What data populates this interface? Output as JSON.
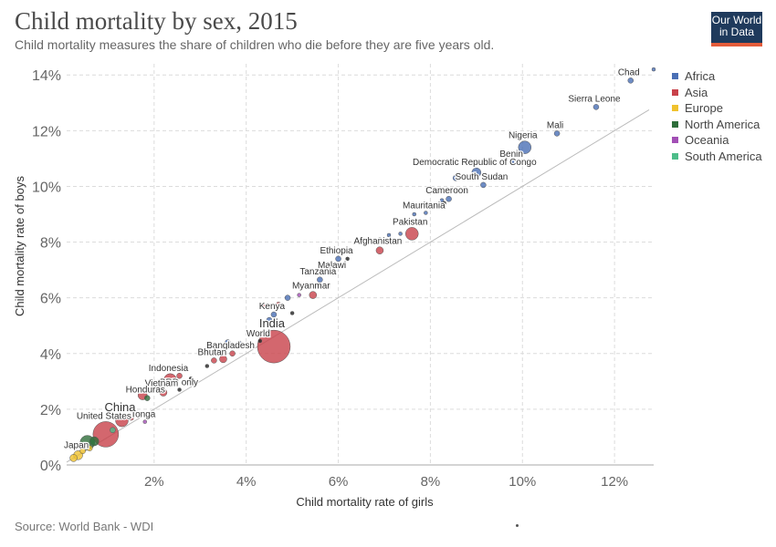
{
  "header": {
    "title": "Child mortality by sex, 2015",
    "subtitle": "Child mortality measures the share of children who die before they are five years old."
  },
  "logo": {
    "line1": "Our World",
    "line2": "in Data"
  },
  "footer": {
    "source": "Source: World Bank - WDI"
  },
  "colors": {
    "Africa": "#4a6fb5",
    "Asia": "#c8414a",
    "Europe": "#f0c22e",
    "North America": "#2e6e3a",
    "Oceania": "#a24fb5",
    "South America": "#4dbd89",
    "aggregate": "#222222"
  },
  "legend": [
    "Africa",
    "Asia",
    "Europe",
    "North America",
    "Oceania",
    "South America"
  ],
  "chart_data": {
    "type": "scatter",
    "xlabel": "Child mortality rate of girls",
    "ylabel": "Child mortality rate of boys",
    "xlim": [
      0.1,
      12.85
    ],
    "ylim": [
      0,
      14.4
    ],
    "x_ticks": [
      "2%",
      "4%",
      "6%",
      "8%",
      "10%",
      "12%"
    ],
    "y_ticks": [
      "0%",
      "2%",
      "4%",
      "6%",
      "8%",
      "10%",
      "12%",
      "14%"
    ],
    "grid": true,
    "reference_line": "y = x",
    "legend_position": "right",
    "points": [
      {
        "label": "Chad",
        "x": 12.35,
        "y": 13.8,
        "r": 3,
        "region": "Africa"
      },
      {
        "label": "",
        "x": 12.85,
        "y": 14.2,
        "r": 2,
        "region": "Africa"
      },
      {
        "label": "Sierra Leone",
        "x": 11.6,
        "y": 12.85,
        "r": 3,
        "region": "Africa"
      },
      {
        "label": "Mali",
        "x": 10.75,
        "y": 11.9,
        "r": 3,
        "region": "Africa"
      },
      {
        "label": "Nigeria",
        "x": 10.05,
        "y": 11.4,
        "r": 7,
        "region": "Africa"
      },
      {
        "label": "Benin",
        "x": 9.8,
        "y": 10.9,
        "r": 2,
        "region": "Africa"
      },
      {
        "label": "Democratic Republic of Congo",
        "x": 9.0,
        "y": 10.5,
        "r": 5,
        "region": "Africa"
      },
      {
        "label": "South Sudan",
        "x": 9.15,
        "y": 10.05,
        "r": 3,
        "region": "Africa"
      },
      {
        "label": "",
        "x": 8.55,
        "y": 10.3,
        "r": 3,
        "region": "Africa"
      },
      {
        "label": "Cameroon",
        "x": 8.4,
        "y": 9.55,
        "r": 3,
        "region": "Africa"
      },
      {
        "label": "",
        "x": 8.25,
        "y": 9.5,
        "r": 2,
        "region": "Africa"
      },
      {
        "label": "Mauritania",
        "x": 7.9,
        "y": 9.05,
        "r": 2,
        "region": "Africa"
      },
      {
        "label": "",
        "x": 7.65,
        "y": 9.0,
        "r": 2,
        "region": "Africa"
      },
      {
        "label": "Pakistan",
        "x": 7.6,
        "y": 8.3,
        "r": 7,
        "region": "Asia"
      },
      {
        "label": "Afghanistan",
        "x": 6.9,
        "y": 7.7,
        "r": 4,
        "region": "Asia"
      },
      {
        "label": "",
        "x": 7.35,
        "y": 8.3,
        "r": 2,
        "region": "Africa"
      },
      {
        "label": "",
        "x": 7.1,
        "y": 8.25,
        "r": 2,
        "region": "Africa"
      },
      {
        "label": "",
        "x": 6.9,
        "y": 8.1,
        "r": 2,
        "region": "North America"
      },
      {
        "label": "Ethiopia",
        "x": 6.0,
        "y": 7.4,
        "r": 3,
        "region": "Africa"
      },
      {
        "label": "",
        "x": 5.75,
        "y": 7.1,
        "r": 5,
        "region": "Africa"
      },
      {
        "label": "Malawi",
        "x": 5.9,
        "y": 6.9,
        "r": 2,
        "region": "Africa"
      },
      {
        "label": "Tanzania",
        "x": 5.6,
        "y": 6.65,
        "r": 3,
        "region": "Africa"
      },
      {
        "label": "Myanmar",
        "x": 5.45,
        "y": 6.1,
        "r": 4,
        "region": "Asia"
      },
      {
        "label": "",
        "x": 5.15,
        "y": 6.1,
        "r": 2,
        "region": "Oceania"
      },
      {
        "label": "",
        "x": 4.9,
        "y": 6.0,
        "r": 3,
        "region": "Africa"
      },
      {
        "label": "Kenya",
        "x": 4.6,
        "y": 5.4,
        "r": 3,
        "region": "Africa"
      },
      {
        "label": "",
        "x": 4.5,
        "y": 5.2,
        "r": 3,
        "region": "Africa"
      },
      {
        "label": "",
        "x": 4.4,
        "y": 5.7,
        "r": 2,
        "region": "Asia"
      },
      {
        "label": "",
        "x": 4.7,
        "y": 5.75,
        "r": 3,
        "region": "Asia"
      },
      {
        "label": "",
        "x": 5.0,
        "y": 5.45,
        "r": 2,
        "region": "aggregate"
      },
      {
        "label": "India",
        "x": 4.6,
        "y": 4.25,
        "r": 18,
        "region": "Asia"
      },
      {
        "label": "World",
        "x": 4.3,
        "y": 4.45,
        "r": 2,
        "region": "aggregate"
      },
      {
        "label": "",
        "x": 3.85,
        "y": 4.4,
        "r": 2,
        "region": "Africa"
      },
      {
        "label": "",
        "x": 3.6,
        "y": 4.4,
        "r": 3,
        "region": "Africa"
      },
      {
        "label": "Bangladesh",
        "x": 3.7,
        "y": 4.0,
        "r": 3,
        "region": "Asia"
      },
      {
        "label": "Bhutan",
        "x": 3.3,
        "y": 3.75,
        "r": 3,
        "region": "Asia"
      },
      {
        "label": "",
        "x": 3.5,
        "y": 3.8,
        "r": 4,
        "region": "Asia"
      },
      {
        "label": "Indonesia",
        "x": 2.35,
        "y": 3.05,
        "r": 7,
        "region": "Asia"
      },
      {
        "label": "",
        "x": 2.55,
        "y": 3.2,
        "r": 3,
        "region": "Asia"
      },
      {
        "label": "IBRD only",
        "x": 2.55,
        "y": 2.7,
        "r": 2,
        "region": "aggregate"
      },
      {
        "label": "Vietnam",
        "x": 2.2,
        "y": 2.6,
        "r": 4,
        "region": "Asia"
      },
      {
        "label": "Honduras",
        "x": 1.85,
        "y": 2.4,
        "r": 3,
        "region": "North America"
      },
      {
        "label": "",
        "x": 1.75,
        "y": 2.5,
        "r": 5,
        "region": "Asia"
      },
      {
        "label": "Tonga",
        "x": 1.8,
        "y": 1.55,
        "r": 2,
        "region": "Oceania"
      },
      {
        "label": "China",
        "x": 1.3,
        "y": 1.6,
        "r": 7,
        "region": "Asia"
      },
      {
        "label": "",
        "x": 1.5,
        "y": 1.7,
        "r": 3,
        "region": "Asia"
      },
      {
        "label": "United States",
        "x": 0.95,
        "y": 1.1,
        "r": 14,
        "region": "Asia"
      },
      {
        "label": "",
        "x": 0.55,
        "y": 0.8,
        "r": 8,
        "region": "North America"
      },
      {
        "label": "",
        "x": 0.7,
        "y": 0.85,
        "r": 5,
        "region": "North America"
      },
      {
        "label": "Japan",
        "x": 0.35,
        "y": 0.35,
        "r": 5,
        "region": "Europe"
      },
      {
        "label": "",
        "x": 0.25,
        "y": 0.25,
        "r": 4,
        "region": "Europe"
      },
      {
        "label": "",
        "x": 0.45,
        "y": 0.5,
        "r": 3,
        "region": "Europe"
      },
      {
        "label": "",
        "x": 0.6,
        "y": 0.6,
        "r": 3,
        "region": "Europe"
      },
      {
        "label": "",
        "x": 1.1,
        "y": 1.25,
        "r": 3,
        "region": "South America"
      },
      {
        "label": "",
        "x": 1.6,
        "y": 1.9,
        "r": 2,
        "region": "aggregate"
      },
      {
        "label": "",
        "x": 2.8,
        "y": 3.1,
        "r": 2,
        "region": "aggregate"
      },
      {
        "label": "",
        "x": 3.15,
        "y": 3.55,
        "r": 2,
        "region": "aggregate"
      },
      {
        "label": "",
        "x": 6.2,
        "y": 7.4,
        "r": 2,
        "region": "aggregate"
      },
      {
        "label": "",
        "x": 8.3,
        "y": 9.4,
        "r": 2,
        "region": "aggregate"
      },
      {
        "label": "",
        "x": 7.0,
        "y": 8.0,
        "r": 2,
        "region": "aggregate"
      }
    ]
  }
}
